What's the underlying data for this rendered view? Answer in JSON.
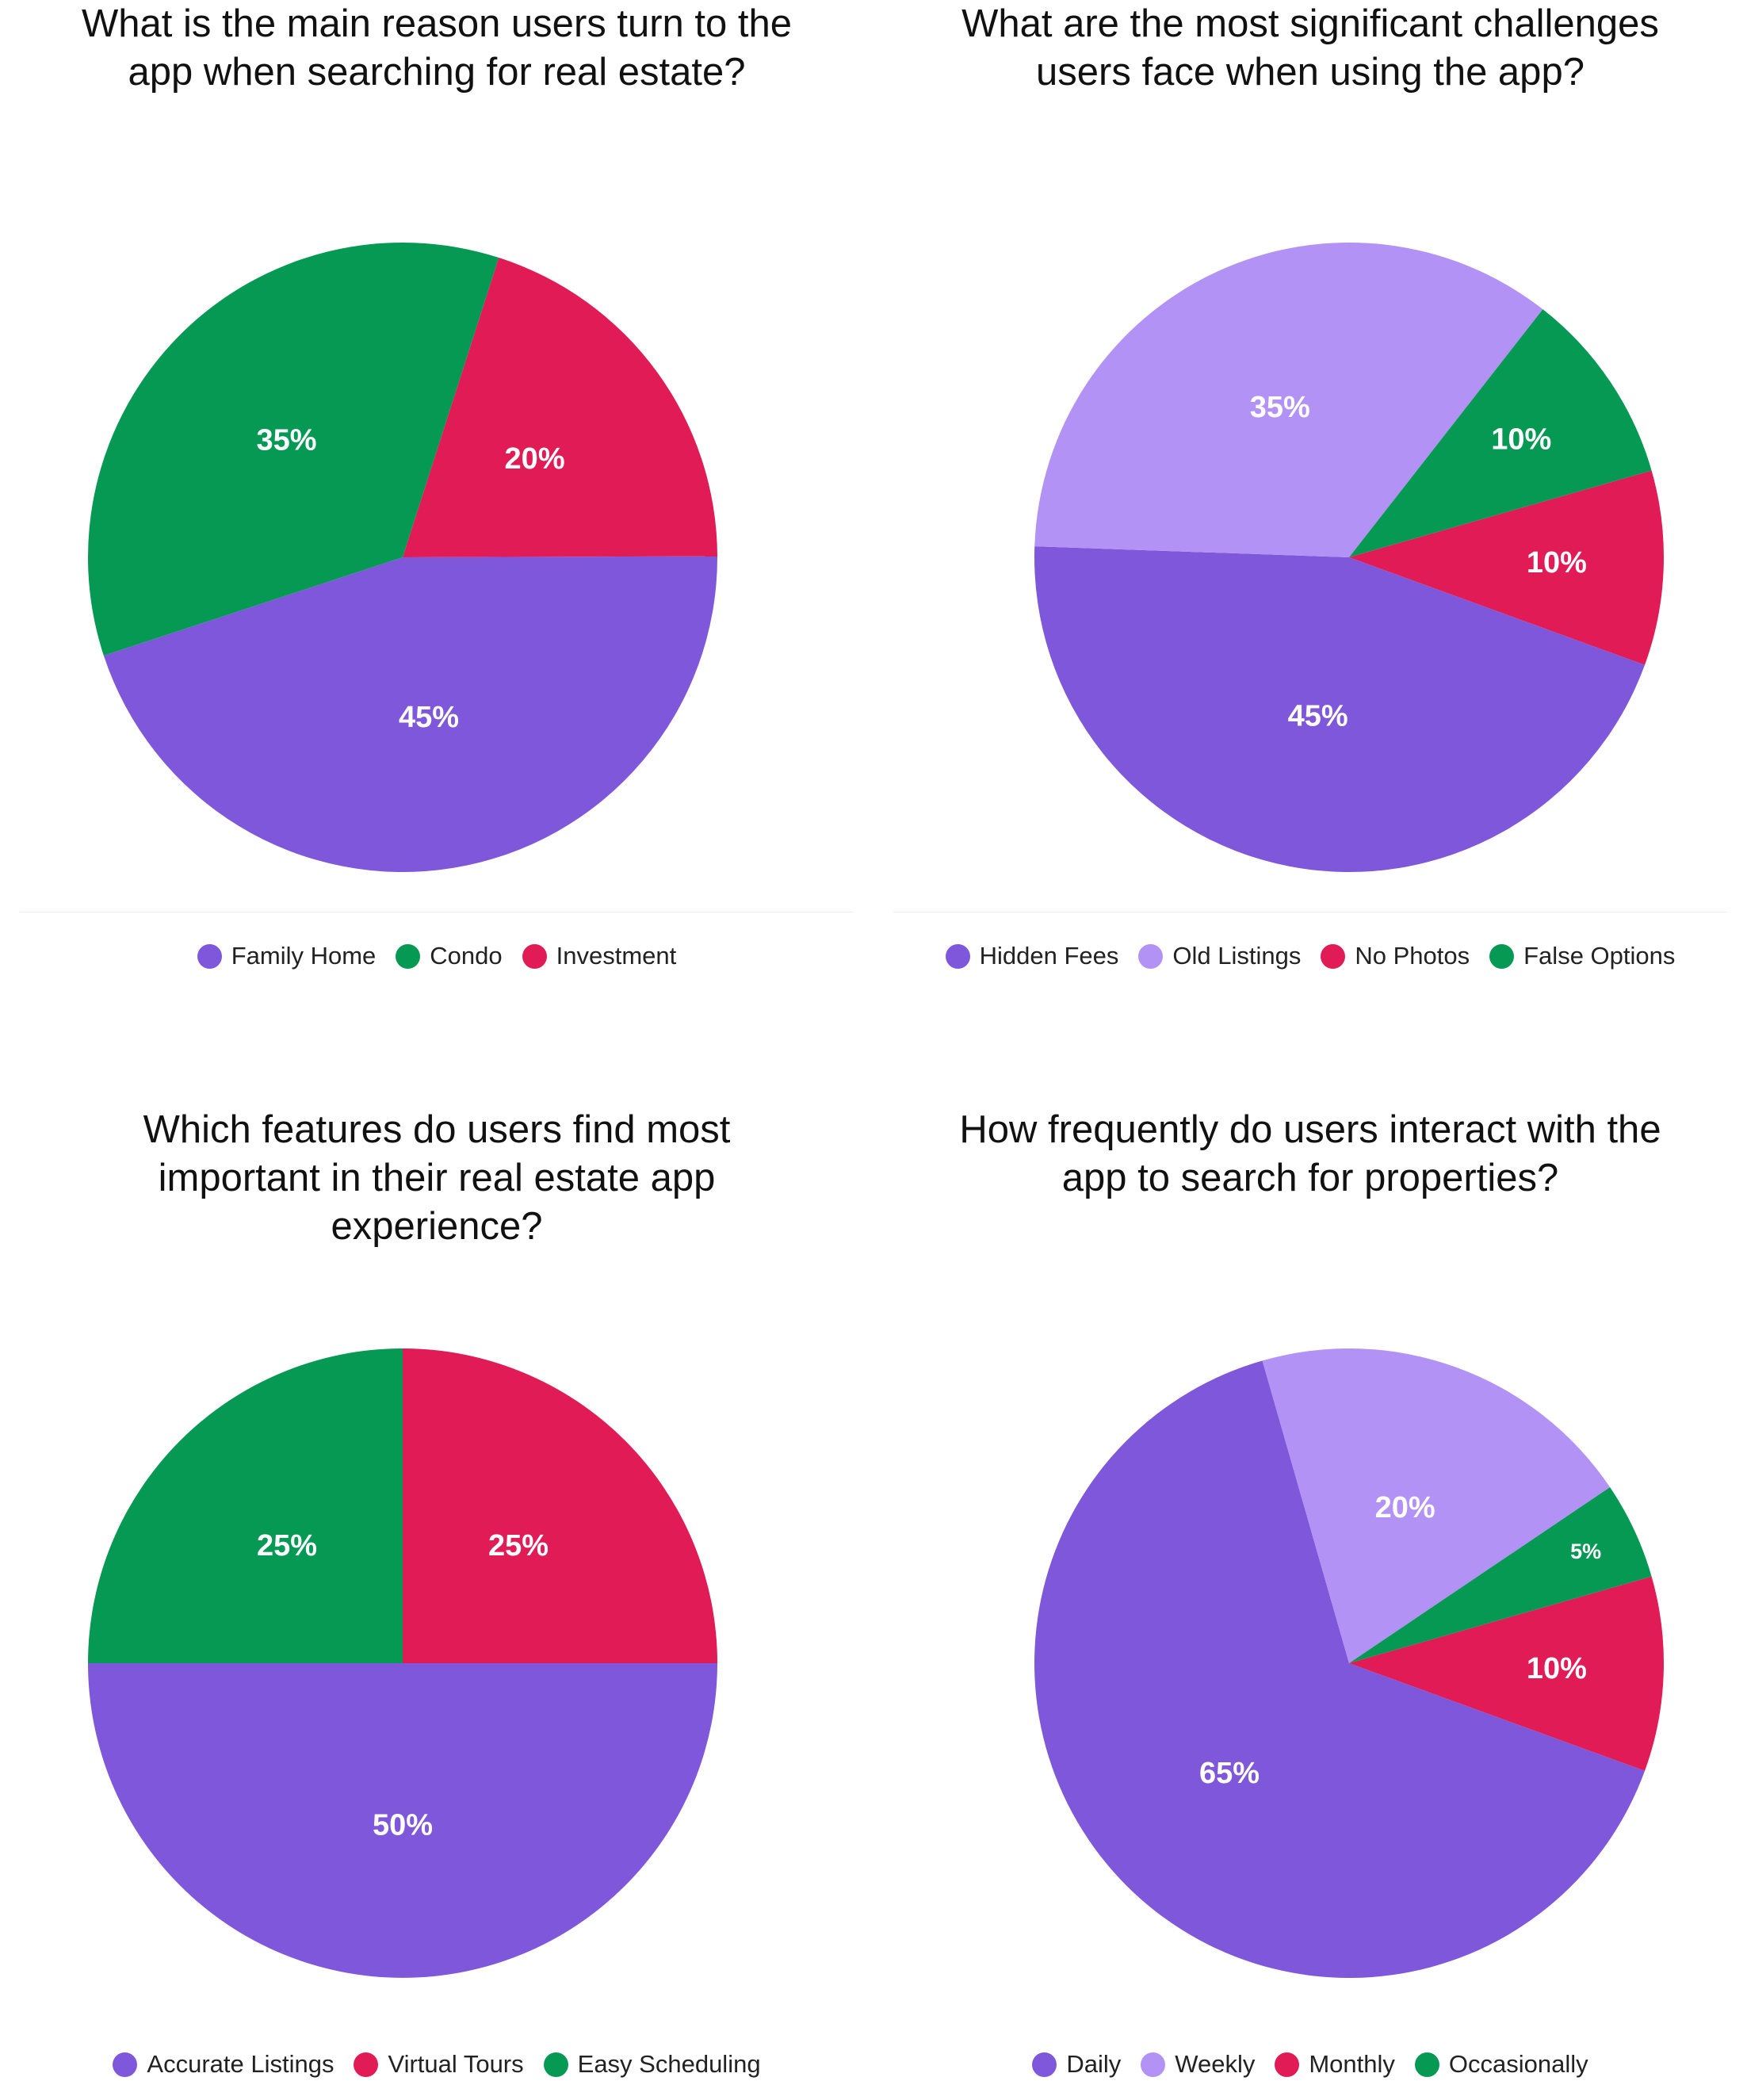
{
  "colors": {
    "purple": "#7f57da",
    "light_purple": "#b292f4",
    "green": "#059954",
    "red": "#e11b55"
  },
  "chart_data": [
    {
      "type": "pie",
      "title": "What is the main reason users turn to the\napp when searching for real estate?",
      "legend_position": "bottom",
      "legend": [
        "Family Home",
        "Condo",
        "Investment"
      ],
      "slices": [
        {
          "label": "Family Home",
          "value": 45,
          "display": "45%",
          "color": "#7f57da"
        },
        {
          "label": "Condo",
          "value": 35,
          "display": "35%",
          "color": "#059954"
        },
        {
          "label": "Investment",
          "value": 20,
          "display": "20%",
          "color": "#e11b55"
        }
      ]
    },
    {
      "type": "pie",
      "title": "What are the most significant challenges\nusers face when using the app?",
      "legend_position": "bottom",
      "legend": [
        "Hidden Fees",
        "Old Listings",
        "No Photos",
        "False Options"
      ],
      "slices": [
        {
          "label": "Hidden Fees",
          "value": 45,
          "display": "45%",
          "color": "#7f57da"
        },
        {
          "label": "Old Listings",
          "value": 35,
          "display": "35%",
          "color": "#b292f4"
        },
        {
          "label": "False Options",
          "value": 10,
          "display": "10%",
          "color": "#059954"
        },
        {
          "label": "No Photos",
          "value": 10,
          "display": "10%",
          "color": "#e11b55"
        }
      ]
    },
    {
      "type": "pie",
      "title": "Which features do users find most\nimportant in their real estate app\nexperience?",
      "legend_position": "bottom",
      "legend": [
        "Accurate Listings",
        "Virtual Tours",
        "Easy Scheduling"
      ],
      "slices": [
        {
          "label": "Accurate Listings",
          "value": 50,
          "display": "50%",
          "color": "#7f57da"
        },
        {
          "label": "Easy Scheduling",
          "value": 25,
          "display": "25%",
          "color": "#059954"
        },
        {
          "label": "Virtual Tours",
          "value": 25,
          "display": "25%",
          "color": "#e11b55"
        }
      ]
    },
    {
      "type": "pie",
      "title": "How frequently do users interact with the\napp to search for properties?",
      "legend_position": "bottom",
      "legend": [
        "Daily",
        "Weekly",
        "Monthly",
        "Occasionally"
      ],
      "slices": [
        {
          "label": "Daily",
          "value": 65,
          "display": "65%",
          "color": "#7f57da"
        },
        {
          "label": "Weekly",
          "value": 20,
          "display": "20%",
          "color": "#b292f4"
        },
        {
          "label": "Occasionally",
          "value": 5,
          "display": "5%",
          "color": "#059954"
        },
        {
          "label": "Monthly",
          "value": 10,
          "display": "10%",
          "color": "#e11b55"
        }
      ]
    }
  ]
}
